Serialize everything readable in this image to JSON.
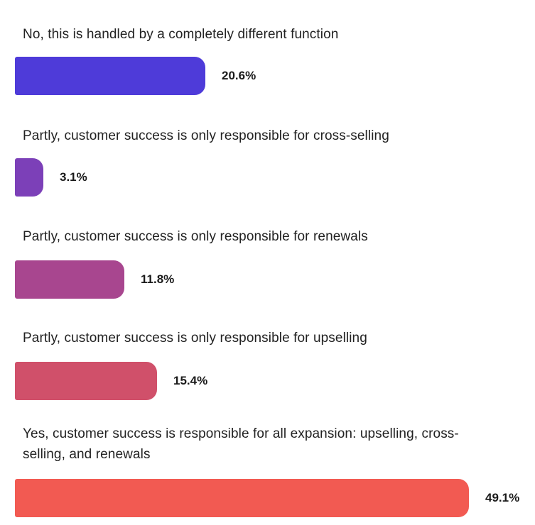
{
  "chart_data": {
    "type": "bar",
    "orientation": "horizontal",
    "categories": [
      "No, this is handled by a completely different function",
      "Partly, customer success is only responsible for cross-selling",
      "Partly, customer success is only responsible for renewals",
      "Partly, customer success is only responsible for upselling",
      "Yes, customer success is responsible for all expansion: upselling, cross-selling, and renewals"
    ],
    "values": [
      20.6,
      3.1,
      11.8,
      15.4,
      49.1
    ],
    "value_labels": [
      "20.6%",
      "3.1%",
      "11.8%",
      "15.4%",
      "49.1%"
    ],
    "unit": "%",
    "bar_colors": [
      "#4E3BD9",
      "#7C40B8",
      "#A8468F",
      "#D0506A",
      "#F25A52"
    ],
    "title": "",
    "xlabel": "",
    "ylabel": "",
    "xlim": [
      0,
      49.1
    ],
    "grid": false,
    "legend": "none"
  }
}
